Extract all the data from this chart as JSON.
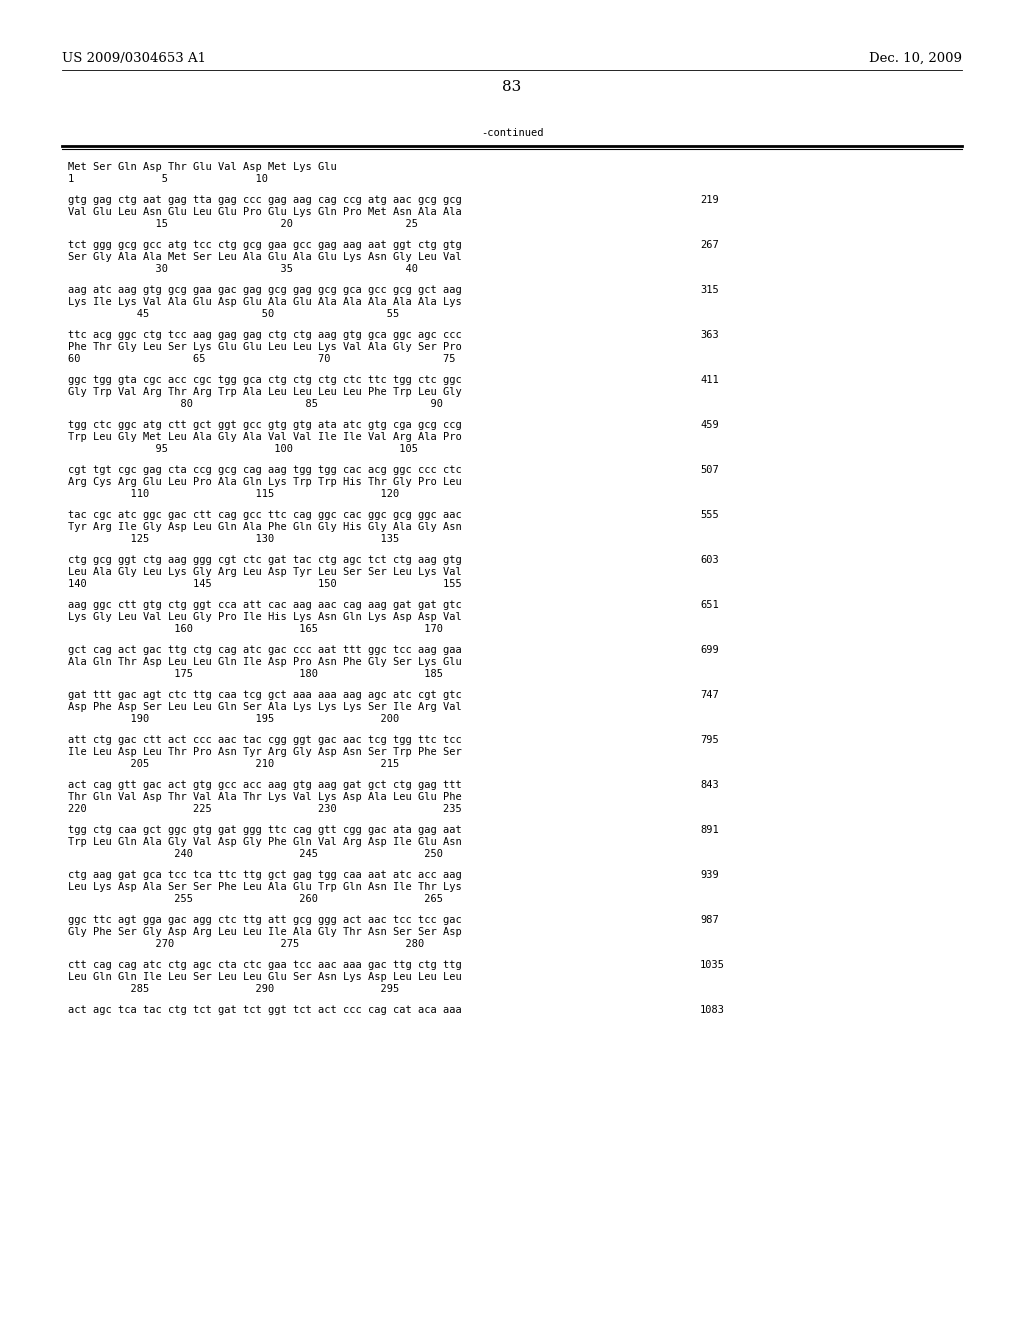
{
  "header_left": "US 2009/0304653 A1",
  "header_right": "Dec. 10, 2009",
  "page_number": "83",
  "continued_label": "-continued",
  "bg_color": "#ffffff",
  "text_color": "#000000",
  "font_size_header": 9.5,
  "font_size_body": 7.5,
  "font_size_page": 11,
  "lines": [
    [
      "Met Ser Gln Asp Thr Glu Val Asp Met Lys Glu",
      false
    ],
    [
      "1              5              10",
      false
    ],
    [
      "",
      false
    ],
    [
      "gtg gag ctg aat gag tta gag ccc gag aag cag ccg atg aac gcg gcg",
      true,
      "219"
    ],
    [
      "Val Glu Leu Asn Glu Leu Glu Pro Glu Lys Gln Pro Met Asn Ala Ala",
      false
    ],
    [
      "              15                  20                  25",
      false
    ],
    [
      "",
      false
    ],
    [
      "tct ggg gcg gcc atg tcc ctg gcg gaa gcc gag aag aat ggt ctg gtg",
      true,
      "267"
    ],
    [
      "Ser Gly Ala Ala Met Ser Leu Ala Glu Ala Glu Lys Asn Gly Leu Val",
      false
    ],
    [
      "              30                  35                  40",
      false
    ],
    [
      "",
      false
    ],
    [
      "aag atc aag gtg gcg gaa gac gag gcg gag gcg gca gcc gcg gct aag",
      true,
      "315"
    ],
    [
      "Lys Ile Lys Val Ala Glu Asp Glu Ala Glu Ala Ala Ala Ala Ala Lys",
      false
    ],
    [
      "           45                  50                  55",
      false
    ],
    [
      "",
      false
    ],
    [
      "ttc acg ggc ctg tcc aag gag gag ctg ctg aag gtg gca ggc agc ccc",
      true,
      "363"
    ],
    [
      "Phe Thr Gly Leu Ser Lys Glu Glu Leu Leu Lys Val Ala Gly Ser Pro",
      false
    ],
    [
      "60                  65                  70                  75",
      false
    ],
    [
      "",
      false
    ],
    [
      "ggc tgg gta cgc acc cgc tgg gca ctg ctg ctg ctc ttc tgg ctc ggc",
      true,
      "411"
    ],
    [
      "Gly Trp Val Arg Thr Arg Trp Ala Leu Leu Leu Leu Phe Trp Leu Gly",
      false
    ],
    [
      "                  80                  85                  90",
      false
    ],
    [
      "",
      false
    ],
    [
      "tgg ctc ggc atg ctt gct ggt gcc gtg gtg ata atc gtg cga gcg ccg",
      true,
      "459"
    ],
    [
      "Trp Leu Gly Met Leu Ala Gly Ala Val Val Ile Ile Val Arg Ala Pro",
      false
    ],
    [
      "              95                 100                 105",
      false
    ],
    [
      "",
      false
    ],
    [
      "cgt tgt cgc gag cta ccg gcg cag aag tgg tgg cac acg ggc ccc ctc",
      true,
      "507"
    ],
    [
      "Arg Cys Arg Glu Leu Pro Ala Gln Lys Trp Trp His Thr Gly Pro Leu",
      false
    ],
    [
      "          110                 115                 120",
      false
    ],
    [
      "",
      false
    ],
    [
      "tac cgc atc ggc gac ctt cag gcc ttc cag ggc cac ggc gcg ggc aac",
      true,
      "555"
    ],
    [
      "Tyr Arg Ile Gly Asp Leu Gln Ala Phe Gln Gly His Gly Ala Gly Asn",
      false
    ],
    [
      "          125                 130                 135",
      false
    ],
    [
      "",
      false
    ],
    [
      "ctg gcg ggt ctg aag ggg cgt ctc gat tac ctg agc tct ctg aag gtg",
      true,
      "603"
    ],
    [
      "Leu Ala Gly Leu Lys Gly Arg Leu Asp Tyr Leu Ser Ser Leu Lys Val",
      false
    ],
    [
      "140                 145                 150                 155",
      false
    ],
    [
      "",
      false
    ],
    [
      "aag ggc ctt gtg ctg ggt cca att cac aag aac cag aag gat gat gtc",
      true,
      "651"
    ],
    [
      "Lys Gly Leu Val Leu Gly Pro Ile His Lys Asn Gln Lys Asp Asp Val",
      false
    ],
    [
      "                 160                 165                 170",
      false
    ],
    [
      "",
      false
    ],
    [
      "gct cag act gac ttg ctg cag atc gac ccc aat ttt ggc tcc aag gaa",
      true,
      "699"
    ],
    [
      "Ala Gln Thr Asp Leu Leu Gln Ile Asp Pro Asn Phe Gly Ser Lys Glu",
      false
    ],
    [
      "                 175                 180                 185",
      false
    ],
    [
      "",
      false
    ],
    [
      "gat ttt gac agt ctc ttg caa tcg gct aaa aaa aag agc atc cgt gtc",
      true,
      "747"
    ],
    [
      "Asp Phe Asp Ser Leu Leu Gln Ser Ala Lys Lys Lys Ser Ile Arg Val",
      false
    ],
    [
      "          190                 195                 200",
      false
    ],
    [
      "",
      false
    ],
    [
      "att ctg gac ctt act ccc aac tac cgg ggt gac aac tcg tgg ttc tcc",
      true,
      "795"
    ],
    [
      "Ile Leu Asp Leu Thr Pro Asn Tyr Arg Gly Asp Asn Ser Trp Phe Ser",
      false
    ],
    [
      "          205                 210                 215",
      false
    ],
    [
      "",
      false
    ],
    [
      "act cag gtt gac act gtg gcc acc aag gtg aag gat gct ctg gag ttt",
      true,
      "843"
    ],
    [
      "Thr Gln Val Asp Thr Val Ala Thr Lys Val Lys Asp Ala Leu Glu Phe",
      false
    ],
    [
      "220                 225                 230                 235",
      false
    ],
    [
      "",
      false
    ],
    [
      "tgg ctg caa gct ggc gtg gat ggg ttc cag gtt cgg gac ata gag aat",
      true,
      "891"
    ],
    [
      "Trp Leu Gln Ala Gly Val Asp Gly Phe Gln Val Arg Asp Ile Glu Asn",
      false
    ],
    [
      "                 240                 245                 250",
      false
    ],
    [
      "",
      false
    ],
    [
      "ctg aag gat gca tcc tca ttc ttg gct gag tgg caa aat atc acc aag",
      true,
      "939"
    ],
    [
      "Leu Lys Asp Ala Ser Ser Phe Leu Ala Glu Trp Gln Asn Ile Thr Lys",
      false
    ],
    [
      "                 255                 260                 265",
      false
    ],
    [
      "",
      false
    ],
    [
      "ggc ttc agt gga gac agg ctc ttg att gcg ggg act aac tcc tcc gac",
      true,
      "987"
    ],
    [
      "Gly Phe Ser Gly Asp Arg Leu Leu Ile Ala Gly Thr Asn Ser Ser Asp",
      false
    ],
    [
      "              270                 275                 280",
      false
    ],
    [
      "",
      false
    ],
    [
      "ctt cag cag atc ctg agc cta ctc gaa tcc aac aaa gac ttg ctg ttg",
      true,
      "1035"
    ],
    [
      "Leu Gln Gln Ile Leu Ser Leu Leu Glu Ser Asn Lys Asp Leu Leu Leu",
      false
    ],
    [
      "          285                 290                 295",
      false
    ],
    [
      "",
      false
    ],
    [
      "act agc tca tac ctg tct gat tct ggt tct act ccc cag cat aca aaa",
      true,
      "1083"
    ]
  ]
}
